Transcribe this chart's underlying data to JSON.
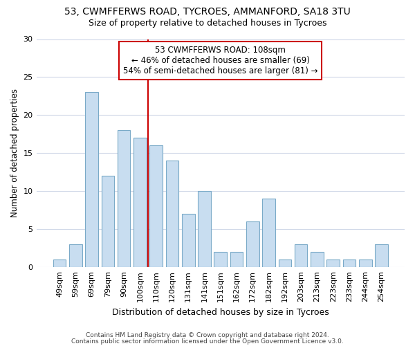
{
  "title1": "53, CWMFFERWS ROAD, TYCROES, AMMANFORD, SA18 3TU",
  "title2": "Size of property relative to detached houses in Tycroes",
  "xlabel": "Distribution of detached houses by size in Tycroes",
  "ylabel": "Number of detached properties",
  "categories": [
    "49sqm",
    "59sqm",
    "69sqm",
    "79sqm",
    "90sqm",
    "100sqm",
    "110sqm",
    "120sqm",
    "131sqm",
    "141sqm",
    "151sqm",
    "162sqm",
    "172sqm",
    "182sqm",
    "192sqm",
    "203sqm",
    "213sqm",
    "223sqm",
    "233sqm",
    "244sqm",
    "254sqm"
  ],
  "values": [
    1,
    3,
    23,
    12,
    18,
    17,
    16,
    14,
    7,
    10,
    2,
    2,
    6,
    9,
    1,
    3,
    2,
    1,
    1,
    1,
    3
  ],
  "bar_color": "#c8ddf0",
  "bar_edge_color": "#7aaac8",
  "vline_x_index": 6,
  "vline_color": "#cc0000",
  "annotation_text": "53 CWMFFERWS ROAD: 108sqm\n← 46% of detached houses are smaller (69)\n54% of semi-detached houses are larger (81) →",
  "annotation_box_color": "#cc0000",
  "ylim": [
    0,
    30
  ],
  "yticks": [
    0,
    5,
    10,
    15,
    20,
    25,
    30
  ],
  "background_color": "#ffffff",
  "grid_color": "#d0d8e8",
  "footer1": "Contains HM Land Registry data © Crown copyright and database right 2024.",
  "footer2": "Contains public sector information licensed under the Open Government Licence v3.0."
}
